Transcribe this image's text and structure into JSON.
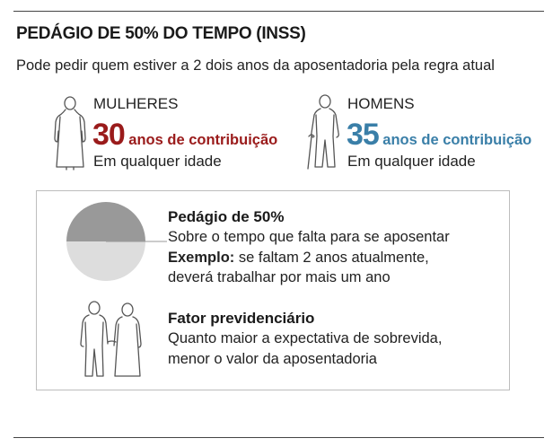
{
  "title": "PEDÁGIO DE 50% DO TEMPO (INSS)",
  "subtitle": "Pode pedir quem estiver a 2 dois anos da aposentadoria pela regra atual",
  "women": {
    "label": "MULHERES",
    "number": "30",
    "unit": "anos de contribuição",
    "age": "Em qualquer idade",
    "color": "#9a1b1b",
    "icon": "woman-figure-icon"
  },
  "men": {
    "label": "HOMENS",
    "number": "35",
    "unit": "anos de contribuição",
    "age": "Em qualquer idade",
    "color": "#3a7fa8",
    "icon": "man-with-cane-icon"
  },
  "toll": {
    "title": "Pedágio de 50%",
    "line1": "Sobre o tempo que falta para se aposentar",
    "example_label": "Exemplo:",
    "example_text": " se faltam 2 anos atualmente,",
    "line3": "deverá trabalhar por mais um ano",
    "pie_share_top": 0.5,
    "pie_top_color": "#999999",
    "pie_bottom_color": "#dddddd",
    "icon": "half-pie-icon"
  },
  "factor": {
    "title": "Fator previdenciário",
    "line1": "Quanto maior a expectativa de sobrevida,",
    "line2": "menor o valor da aposentadoria",
    "icon": "elderly-couple-icon"
  }
}
